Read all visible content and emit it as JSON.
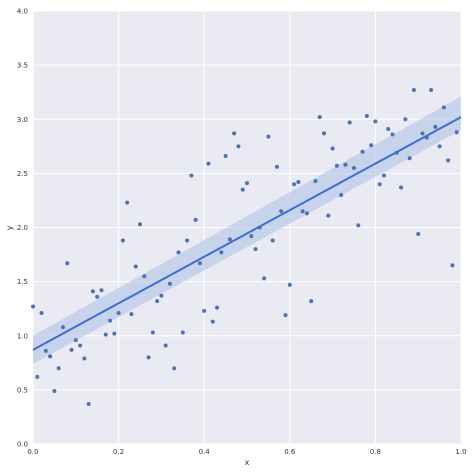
{
  "colors": {
    "plot_background": "#eaeaf2",
    "grid": "#ffffff",
    "points": "#4c72b0",
    "line": "#3a6fd0",
    "band": "#a9bde6"
  },
  "chart_data": {
    "type": "scatter",
    "xlabel": "x",
    "ylabel": "y",
    "xlim": [
      0.0,
      1.0
    ],
    "ylim": [
      0.0,
      4.0
    ],
    "xticks": [
      "0.0",
      "0.2",
      "0.4",
      "0.6",
      "0.8",
      "1.0"
    ],
    "yticks": [
      "0.0",
      "0.5",
      "1.0",
      "1.5",
      "2.0",
      "2.5",
      "3.0",
      "3.5",
      "4.0"
    ],
    "xtick_values": [
      0.0,
      0.2,
      0.4,
      0.6,
      0.8,
      1.0
    ],
    "ytick_values": [
      0.0,
      0.5,
      1.0,
      1.5,
      2.0,
      2.5,
      3.0,
      3.5,
      4.0
    ],
    "grid": true,
    "points": [
      [
        0.0,
        1.27
      ],
      [
        0.01,
        0.62
      ],
      [
        0.02,
        1.21
      ],
      [
        0.03,
        0.86
      ],
      [
        0.04,
        0.81
      ],
      [
        0.05,
        0.49
      ],
      [
        0.06,
        0.7
      ],
      [
        0.07,
        1.08
      ],
      [
        0.08,
        1.67
      ],
      [
        0.09,
        0.87
      ],
      [
        0.1,
        0.96
      ],
      [
        0.11,
        0.91
      ],
      [
        0.12,
        0.79
      ],
      [
        0.13,
        0.37
      ],
      [
        0.14,
        1.41
      ],
      [
        0.15,
        1.36
      ],
      [
        0.16,
        1.42
      ],
      [
        0.17,
        1.01
      ],
      [
        0.18,
        1.14
      ],
      [
        0.19,
        1.02
      ],
      [
        0.2,
        1.21
      ],
      [
        0.21,
        1.88
      ],
      [
        0.22,
        2.23
      ],
      [
        0.23,
        1.2
      ],
      [
        0.24,
        1.64
      ],
      [
        0.25,
        2.03
      ],
      [
        0.26,
        1.55
      ],
      [
        0.27,
        0.8
      ],
      [
        0.28,
        1.03
      ],
      [
        0.29,
        1.32
      ],
      [
        0.3,
        1.37
      ],
      [
        0.31,
        0.91
      ],
      [
        0.32,
        1.48
      ],
      [
        0.33,
        0.7
      ],
      [
        0.34,
        1.77
      ],
      [
        0.35,
        1.03
      ],
      [
        0.36,
        1.88
      ],
      [
        0.37,
        2.48
      ],
      [
        0.38,
        2.07
      ],
      [
        0.39,
        1.67
      ],
      [
        0.4,
        1.23
      ],
      [
        0.41,
        2.59
      ],
      [
        0.42,
        1.13
      ],
      [
        0.43,
        1.26
      ],
      [
        0.44,
        1.77
      ],
      [
        0.45,
        2.66
      ],
      [
        0.46,
        1.89
      ],
      [
        0.47,
        2.87
      ],
      [
        0.48,
        2.75
      ],
      [
        0.49,
        2.35
      ],
      [
        0.5,
        2.41
      ],
      [
        0.51,
        1.92
      ],
      [
        0.52,
        1.8
      ],
      [
        0.53,
        2.0
      ],
      [
        0.54,
        1.53
      ],
      [
        0.55,
        2.84
      ],
      [
        0.56,
        1.88
      ],
      [
        0.57,
        2.56
      ],
      [
        0.58,
        2.15
      ],
      [
        0.59,
        1.19
      ],
      [
        0.6,
        1.47
      ],
      [
        0.61,
        2.4
      ],
      [
        0.62,
        2.42
      ],
      [
        0.63,
        2.15
      ],
      [
        0.64,
        2.13
      ],
      [
        0.65,
        1.32
      ],
      [
        0.66,
        2.43
      ],
      [
        0.67,
        3.02
      ],
      [
        0.68,
        2.87
      ],
      [
        0.69,
        2.11
      ],
      [
        0.7,
        2.73
      ],
      [
        0.71,
        2.57
      ],
      [
        0.72,
        2.3
      ],
      [
        0.73,
        2.58
      ],
      [
        0.74,
        2.97
      ],
      [
        0.75,
        2.55
      ],
      [
        0.76,
        2.02
      ],
      [
        0.77,
        2.7
      ],
      [
        0.78,
        3.03
      ],
      [
        0.79,
        2.76
      ],
      [
        0.8,
        2.98
      ],
      [
        0.81,
        2.4
      ],
      [
        0.82,
        2.48
      ],
      [
        0.83,
        2.91
      ],
      [
        0.84,
        2.86
      ],
      [
        0.85,
        2.69
      ],
      [
        0.86,
        2.37
      ],
      [
        0.87,
        3.0
      ],
      [
        0.88,
        2.64
      ],
      [
        0.89,
        3.27
      ],
      [
        0.9,
        1.94
      ],
      [
        0.91,
        2.87
      ],
      [
        0.92,
        2.83
      ],
      [
        0.93,
        3.27
      ],
      [
        0.94,
        2.93
      ],
      [
        0.95,
        2.75
      ],
      [
        0.96,
        3.11
      ],
      [
        0.97,
        2.62
      ],
      [
        0.98,
        1.65
      ],
      [
        0.99,
        2.88
      ]
    ],
    "regression": {
      "x": [
        0.0,
        1.0
      ],
      "y": [
        0.87,
        3.02
      ],
      "ci_lower": [
        0.74,
        2.9
      ],
      "ci_upper": [
        1.0,
        3.21
      ]
    }
  }
}
